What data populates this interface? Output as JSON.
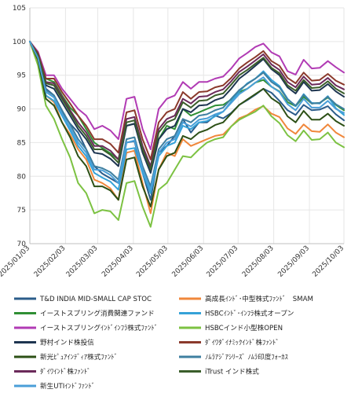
{
  "chart_data": {
    "type": "line",
    "title": "",
    "xlabel": "",
    "ylabel": "",
    "ylim": [
      70,
      105
    ],
    "yticks": [
      70,
      75,
      80,
      85,
      90,
      95,
      100,
      105
    ],
    "xlim": [
      "2025-01-03",
      "2025-10-03"
    ],
    "xticks": [
      "2025/01/03",
      "2025/02/03",
      "2025/03/03",
      "2025/04/03",
      "2025/05/03",
      "2025/06/03",
      "2025/07/03",
      "2025/08/03",
      "2025/09/03",
      "2025/10/03"
    ],
    "grid": true,
    "legend_position": "bottom",
    "x": [
      "2025-01-03",
      "2025-01-10",
      "2025-01-17",
      "2025-01-24",
      "2025-01-31",
      "2025-02-07",
      "2025-02-14",
      "2025-02-21",
      "2025-02-28",
      "2025-03-07",
      "2025-03-14",
      "2025-03-21",
      "2025-03-28",
      "2025-04-04",
      "2025-04-11",
      "2025-04-18",
      "2025-04-25",
      "2025-05-02",
      "2025-05-09",
      "2025-05-16",
      "2025-05-23",
      "2025-05-30",
      "2025-06-06",
      "2025-06-13",
      "2025-06-20",
      "2025-06-27",
      "2025-07-04",
      "2025-07-11",
      "2025-07-18",
      "2025-07-25",
      "2025-08-01",
      "2025-08-08",
      "2025-08-15",
      "2025-08-22",
      "2025-08-29",
      "2025-09-05",
      "2025-09-12",
      "2025-09-19",
      "2025-09-26",
      "2025-10-03"
    ],
    "series": [
      {
        "name": "T&D INDIA MID-SMALL CAP STOC",
        "color": "#2b5c8a",
        "values": [
          100,
          97.5,
          93.0,
          92.0,
          89.5,
          87.8,
          86.5,
          84.0,
          81.5,
          80.4,
          79.7,
          79.0,
          85.0,
          85.2,
          80.5,
          76.5,
          83.5,
          84.5,
          86.0,
          88.5,
          86.5,
          88.0,
          88.0,
          89.0,
          88.6,
          89.4,
          90.6,
          91.3,
          92.1,
          93.0,
          92.4,
          91.2,
          89.8,
          89.1,
          90.6,
          89.8,
          89.9,
          90.4,
          89.2,
          88.3
        ]
      },
      {
        "name": "高成長ｲﾝﾄﾞ･中型株式ﾌｧﾝﾄﾞ　SMAM",
        "color": "#f0873b",
        "values": [
          100,
          97.0,
          92.0,
          91.0,
          88.0,
          86.2,
          84.0,
          82.5,
          79.5,
          79.0,
          78.2,
          76.5,
          83.5,
          83.8,
          79.0,
          74.5,
          81.0,
          83.5,
          83.0,
          85.5,
          84.5,
          85.0,
          85.5,
          86.0,
          86.2,
          87.4,
          88.6,
          89.1,
          89.9,
          90.4,
          89.3,
          88.8,
          87.1,
          86.3,
          87.7,
          86.7,
          86.6,
          87.7,
          86.5,
          85.8
        ]
      },
      {
        "name": "イーストスプリング消費関連ファンド",
        "color": "#2f8f34",
        "values": [
          100,
          98.2,
          94.5,
          94.0,
          92.0,
          90.2,
          89.0,
          87.0,
          85.0,
          84.2,
          83.4,
          82.5,
          87.5,
          87.8,
          84.2,
          81.0,
          85.5,
          87.5,
          87.0,
          90.0,
          89.0,
          89.5,
          90.0,
          90.5,
          90.6,
          91.4,
          92.5,
          93.0,
          93.9,
          94.3,
          93.3,
          92.6,
          91.0,
          90.4,
          91.8,
          90.8,
          90.9,
          91.7,
          90.6,
          89.8
        ]
      },
      {
        "name": "HSBCｲﾝﾄﾞ･ｲﾝﾌﾗ株式オープン",
        "color": "#35a2d8",
        "values": [
          100,
          97.8,
          92.0,
          91.2,
          89.0,
          86.8,
          84.5,
          83.0,
          80.5,
          79.8,
          79.2,
          78.0,
          84.0,
          84.2,
          80.5,
          77.5,
          83.0,
          84.5,
          85.0,
          87.5,
          87.0,
          88.0,
          88.2,
          88.9,
          89.6,
          91.1,
          92.6,
          93.8,
          94.5,
          95.6,
          94.3,
          93.4,
          91.5,
          90.4,
          92.2,
          90.9,
          90.8,
          91.9,
          90.1,
          89.1
        ]
      },
      {
        "name": "イーストスプリングｲﾝﾄﾞｲﾝﾌﾗ株式ﾌｧﾝﾄﾞ",
        "color": "#b13bb4",
        "values": [
          100,
          98.5,
          95.0,
          95.0,
          93.0,
          91.5,
          90.0,
          89.0,
          87.0,
          87.5,
          86.8,
          85.5,
          91.5,
          91.8,
          87.0,
          84.0,
          90.0,
          91.5,
          92.0,
          94.0,
          93.0,
          94.0,
          94.0,
          94.5,
          94.8,
          96.0,
          97.5,
          98.3,
          99.2,
          99.7,
          98.4,
          97.8,
          95.6,
          95.1,
          97.3,
          96.0,
          96.1,
          97.1,
          96.2,
          95.4
        ]
      },
      {
        "name": "HSBCインド小型株OPEN",
        "color": "#7cc242",
        "values": [
          100,
          96.5,
          90.5,
          88.5,
          85.5,
          82.8,
          79.0,
          77.5,
          74.5,
          75.0,
          74.8,
          73.5,
          79.0,
          79.3,
          75.5,
          72.5,
          78.0,
          79.0,
          81.0,
          83.0,
          82.8,
          84.0,
          85.0,
          85.5,
          85.8,
          87.4,
          88.4,
          89.0,
          89.6,
          90.5,
          88.9,
          87.9,
          86.1,
          85.2,
          86.8,
          85.4,
          85.5,
          86.5,
          85.0,
          84.3
        ]
      },
      {
        "name": "野村インド株投信",
        "color": "#1e3550",
        "values": [
          100,
          98.0,
          93.5,
          93.0,
          91.0,
          89.0,
          87.0,
          85.5,
          83.5,
          83.3,
          82.6,
          81.5,
          87.5,
          87.8,
          83.5,
          80.5,
          85.5,
          87.0,
          87.5,
          90.0,
          89.5,
          90.5,
          90.6,
          91.3,
          91.7,
          93.0,
          94.5,
          95.4,
          96.4,
          97.4,
          95.9,
          95.0,
          93.2,
          92.3,
          94.0,
          92.7,
          92.8,
          93.7,
          92.6,
          91.8
        ]
      },
      {
        "name": "ﾀﾞｲﾜﾀﾞｲﾅﾐｯｸｲﾝﾄﾞ株ﾌｧﾝﾄﾞ",
        "color": "#8b3a2c",
        "values": [
          100,
          98.3,
          94.5,
          94.5,
          92.5,
          90.8,
          89.0,
          87.5,
          85.5,
          85.5,
          84.8,
          83.5,
          89.5,
          89.8,
          85.5,
          82.5,
          88.0,
          89.5,
          90.0,
          92.5,
          91.5,
          92.5,
          92.6,
          93.2,
          93.5,
          94.6,
          96.0,
          96.9,
          97.7,
          98.6,
          97.1,
          96.4,
          94.6,
          93.8,
          95.4,
          94.2,
          94.3,
          95.2,
          94.2,
          93.6
        ]
      },
      {
        "name": "新光ﾋﾟｭｱｲﾝﾃﾞｨｱ株式ﾌｧﾝﾄﾞ",
        "color": "#2d5016",
        "values": [
          100,
          97.3,
          91.5,
          90.5,
          88.0,
          85.8,
          83.0,
          81.5,
          78.5,
          78.5,
          77.9,
          76.5,
          82.5,
          82.8,
          78.5,
          75.5,
          81.0,
          83.0,
          83.5,
          86.0,
          85.5,
          86.5,
          86.9,
          87.6,
          88.0,
          89.3,
          90.6,
          91.4,
          92.2,
          93.0,
          91.6,
          90.8,
          88.9,
          88.0,
          89.7,
          88.4,
          88.4,
          89.3,
          88.2,
          87.5
        ]
      },
      {
        "name": "ﾉﾑﾗｱｼﾞｱｼﾘｰｽﾞ ﾉﾑﾗ印度ﾌｫｰｶｽ",
        "color": "#3e7fa0",
        "values": [
          100,
          97.7,
          92.8,
          92.0,
          89.8,
          87.7,
          85.5,
          84.0,
          81.5,
          81.2,
          80.6,
          79.5,
          85.5,
          85.8,
          81.5,
          78.5,
          84.0,
          85.5,
          86.0,
          88.5,
          88.0,
          89.0,
          89.2,
          89.8,
          90.2,
          91.5,
          92.8,
          93.7,
          94.5,
          95.4,
          94.0,
          93.2,
          91.4,
          90.5,
          92.1,
          90.8,
          90.9,
          91.8,
          90.7,
          90.0
        ]
      },
      {
        "name": "ﾀﾞｲﾜｲﾝﾄﾞ株ﾌｧﾝﾄﾞ",
        "color": "#6b2a5a",
        "values": [
          100,
          98.1,
          94.0,
          93.8,
          91.8,
          89.8,
          88.0,
          86.5,
          84.5,
          84.5,
          83.8,
          82.5,
          88.5,
          88.8,
          84.5,
          81.5,
          87.0,
          88.5,
          89.0,
          91.5,
          90.8,
          91.8,
          91.9,
          92.5,
          92.9,
          94.1,
          95.5,
          96.3,
          97.2,
          98.1,
          96.6,
          95.8,
          94.0,
          93.2,
          94.8,
          93.6,
          93.7,
          94.6,
          93.5,
          92.9
        ]
      },
      {
        "name": "iTrust インド株式",
        "color": "#3b5e2b",
        "values": [
          100,
          98.0,
          93.8,
          93.5,
          91.5,
          89.5,
          87.5,
          86.0,
          84.0,
          84.0,
          83.2,
          82.0,
          88.0,
          88.3,
          84.0,
          81.0,
          86.5,
          88.0,
          88.5,
          91.0,
          90.2,
          91.2,
          91.3,
          92.0,
          92.3,
          93.6,
          95.0,
          95.8,
          96.7,
          97.6,
          96.1,
          95.3,
          93.5,
          92.7,
          94.3,
          93.1,
          93.2,
          94.1,
          93.0,
          92.3
        ]
      },
      {
        "name": "新生UTIｲﾝﾄﾞﾌｧﾝﾄﾞ",
        "color": "#4a9fd8",
        "values": [
          100,
          97.6,
          92.5,
          91.7,
          89.3,
          87.2,
          85.0,
          83.5,
          81.0,
          80.9,
          80.2,
          79.0,
          85.0,
          85.3,
          81.0,
          78.0,
          83.5,
          85.0,
          85.5,
          88.0,
          87.4,
          88.4,
          88.6,
          89.2,
          89.6,
          90.9,
          92.2,
          93.0,
          93.9,
          94.7,
          93.3,
          92.5,
          90.7,
          89.8,
          91.5,
          90.2,
          90.2,
          91.2,
          90.0,
          89.4
        ]
      }
    ]
  }
}
